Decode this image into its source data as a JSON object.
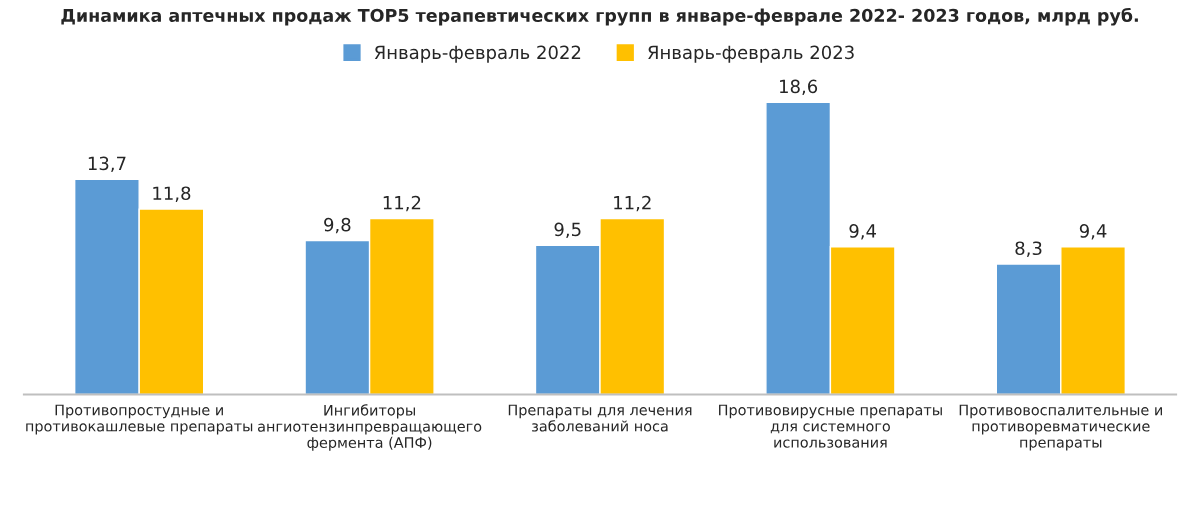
{
  "chart_data": {
    "type": "bar",
    "title": "Динамика аптечных продаж TOP5 терапевтических групп в январе-феврале 2022- 2023 годов, млрд руб.",
    "categories": [
      "Противопростудные и\nпротивокашлевые препараты",
      "Ингибиторы\nангиотензинпревращающего\nфермента (АПФ)",
      "Препараты для лечения\nзаболеваний носа",
      "Противовирусные препараты\nдля системного\nиспользования",
      "Противовоспалительные и\nпротиворевматические\nпрепараты"
    ],
    "series": [
      {
        "name": "Январь-февраль 2022",
        "color": "#5b9bd5",
        "values": [
          13.7,
          9.8,
          9.5,
          18.6,
          8.3
        ],
        "value_labels": [
          "13,7",
          "9,8",
          "9,5",
          "18,6",
          "8,3"
        ]
      },
      {
        "name": "Январь-февраль 2023",
        "color": "#ffc000",
        "values": [
          11.8,
          11.2,
          11.2,
          9.4,
          9.4
        ],
        "value_labels": [
          "11,8",
          "11,2",
          "11,2",
          "9,4",
          "9,4"
        ]
      }
    ],
    "tick_labels": "x",
    "grid": false,
    "legend": "top"
  }
}
